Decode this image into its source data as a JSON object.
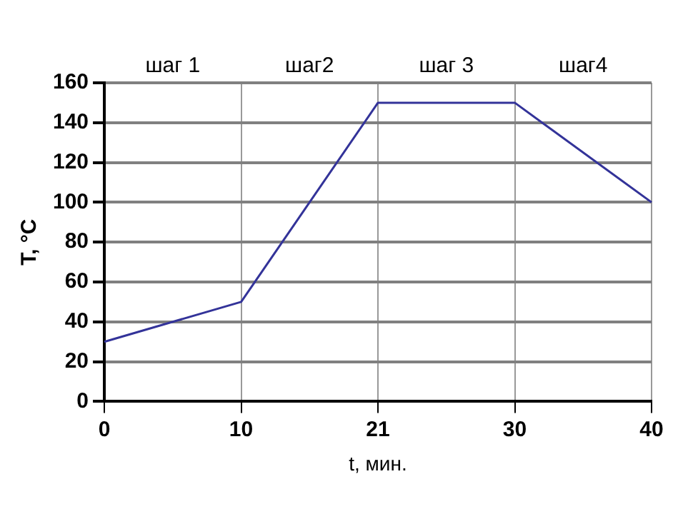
{
  "chart_data": {
    "type": "line",
    "xlabel": "t, мин.",
    "ylabel": "T, °C",
    "categories": [
      "0",
      "10",
      "21",
      "30",
      "40"
    ],
    "series": [
      {
        "color": "#333399",
        "values": [
          30,
          50,
          150,
          150,
          100
        ]
      }
    ],
    "ylim": [
      0,
      160
    ],
    "yticks": [
      0,
      20,
      40,
      60,
      80,
      100,
      120,
      140,
      160
    ],
    "annotations": [
      "шаг 1",
      "шаг2",
      "шаг 3",
      "шаг4"
    ],
    "grid": true,
    "legend": false,
    "marker": "none",
    "line_style": "solid"
  }
}
